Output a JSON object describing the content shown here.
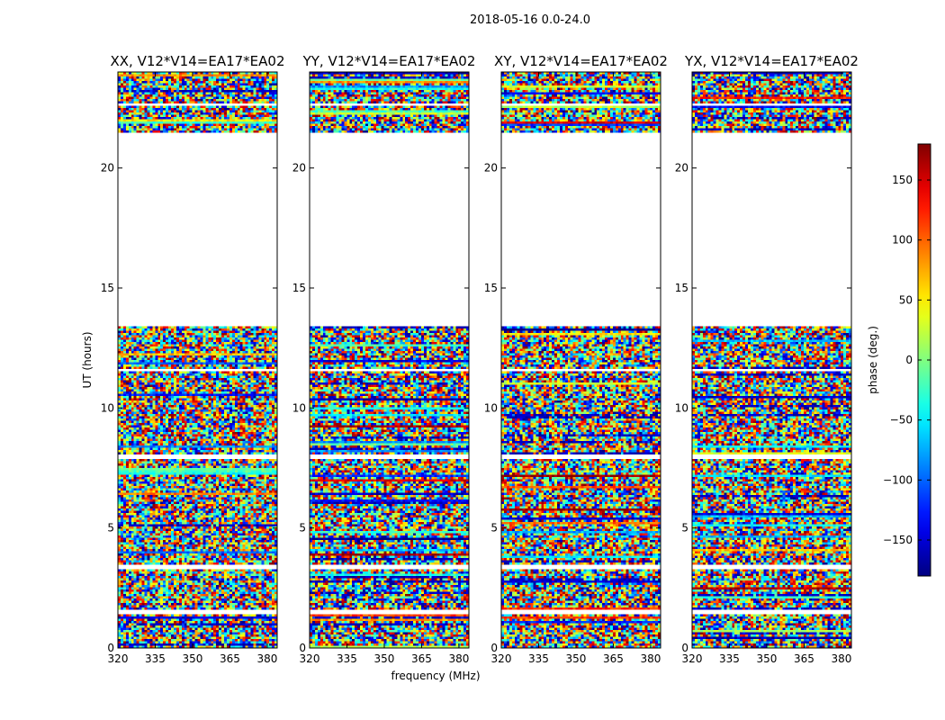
{
  "figure": {
    "suptitle": "2018-05-16 0.0-24.0",
    "xlabel": "frequency (MHz)",
    "ylabel": "UT (hours)",
    "colorbar_label": "phase (deg.)"
  },
  "chart_data": {
    "type": "heatmap",
    "suptitle": "2018-05-16 0.0-24.0",
    "xlabel": "frequency (MHz)",
    "ylabel": "UT (hours)",
    "xlim": [
      320,
      384
    ],
    "ylim": [
      0,
      24
    ],
    "xticks": [
      320,
      335,
      350,
      365,
      380
    ],
    "yticks": [
      0,
      5,
      10,
      15,
      20
    ],
    "colormap": "jet",
    "colorbar": {
      "label": "phase (deg.)",
      "range": [
        -180,
        180
      ],
      "ticks": [
        -150,
        -100,
        -50,
        0,
        50,
        100,
        150
      ],
      "tick_labels": [
        "−150",
        "−100",
        "−50",
        "0",
        "50",
        "100",
        "150"
      ]
    },
    "gaps_hours": [
      [
        13.45,
        21.45
      ],
      [
        7.9,
        8.05
      ],
      [
        3.3,
        3.45
      ],
      [
        11.5,
        11.65
      ],
      [
        22.6,
        22.7
      ],
      [
        1.45,
        1.55
      ]
    ],
    "panels": [
      {
        "title": "XX, V12*V14=EA17*EA02",
        "seed": 11
      },
      {
        "title": "YY, V12*V14=EA17*EA02",
        "seed": 23
      },
      {
        "title": "XY, V12*V14=EA17*EA02",
        "seed": 37
      },
      {
        "title": "YX, V12*V14=EA17*EA02",
        "seed": 51
      }
    ]
  }
}
